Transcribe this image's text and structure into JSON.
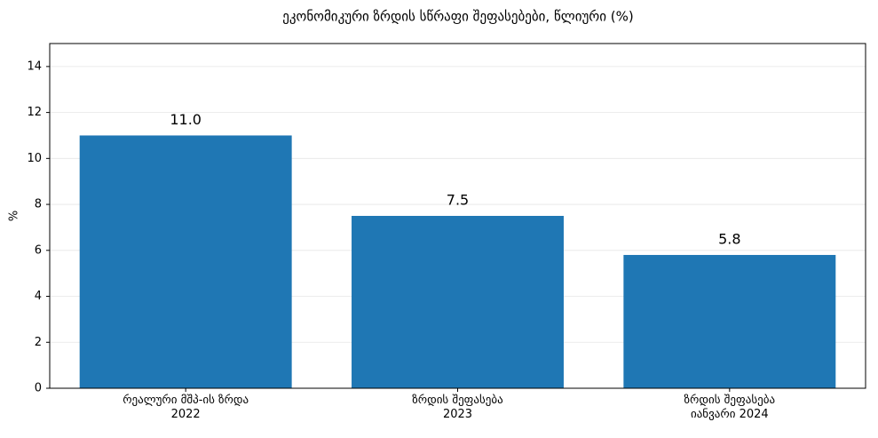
{
  "chart_data": {
    "type": "bar",
    "title": "ეკონომიკური ზრდის სწრაფი შეფასებები, წლიური (%)",
    "y_label": "%",
    "categories": [
      "რეალური მშპ-ის ზრდა\n2022",
      "ზრდის შეფასება\n2023",
      "ზრდის შეფასება\nიანვარი 2024"
    ],
    "values": [
      11.0,
      7.5,
      5.8
    ],
    "value_labels": [
      "11.0",
      "7.5",
      "5.8"
    ],
    "color": "#1f77b4",
    "ylim": [
      0,
      15
    ],
    "yticks": [
      0,
      2,
      4,
      6,
      8,
      10,
      12,
      14
    ],
    "grid": true
  }
}
